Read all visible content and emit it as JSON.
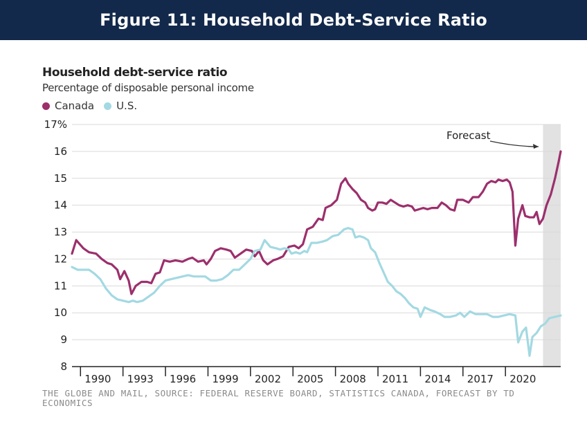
{
  "banner": {
    "title": "Figure 11: Household Debt-Service Ratio"
  },
  "colors": {
    "banner_bg": "#13294b",
    "canada": "#9c2f6c",
    "us": "#a3d9e2",
    "forecast_band": "#e2e2e2"
  },
  "chart_data": {
    "type": "line",
    "title": "Household debt-service ratio",
    "subtitle": "Percentage of disposable personal income",
    "ylim": [
      8,
      17
    ],
    "y_ticks": [
      "8",
      "9",
      "10",
      "11",
      "12",
      "13",
      "14",
      "15",
      "16",
      "17%"
    ],
    "xlim": [
      1988.5,
      2023.0
    ],
    "x_ticks": [
      "1990",
      "1993",
      "1996",
      "1999",
      "2002",
      "2005",
      "2008",
      "2011",
      "2014",
      "2017",
      "2020"
    ],
    "grid": true,
    "legend": [
      "Canada",
      "U.S."
    ],
    "forecast": {
      "label": "Forecast",
      "start": 2021.75,
      "end": 2023.0
    },
    "series": [
      {
        "name": "Canada",
        "color": "#9c2f6c",
        "points": [
          [
            1988.5,
            12.2
          ],
          [
            1988.8,
            12.7
          ],
          [
            1989.3,
            12.4
          ],
          [
            1989.7,
            12.25
          ],
          [
            1990.2,
            12.2
          ],
          [
            1990.6,
            12.0
          ],
          [
            1991.0,
            11.85
          ],
          [
            1991.3,
            11.8
          ],
          [
            1991.7,
            11.6
          ],
          [
            1991.9,
            11.25
          ],
          [
            1992.2,
            11.55
          ],
          [
            1992.5,
            11.2
          ],
          [
            1992.7,
            10.7
          ],
          [
            1993.0,
            11.0
          ],
          [
            1993.4,
            11.15
          ],
          [
            1993.8,
            11.15
          ],
          [
            1994.1,
            11.1
          ],
          [
            1994.4,
            11.45
          ],
          [
            1994.7,
            11.5
          ],
          [
            1995.0,
            11.95
          ],
          [
            1995.4,
            11.9
          ],
          [
            1995.8,
            11.95
          ],
          [
            1996.3,
            11.9
          ],
          [
            1996.7,
            12.0
          ],
          [
            1997.0,
            12.05
          ],
          [
            1997.4,
            11.9
          ],
          [
            1997.8,
            11.95
          ],
          [
            1998.0,
            11.8
          ],
          [
            1998.3,
            12.0
          ],
          [
            1998.6,
            12.3
          ],
          [
            1999.0,
            12.4
          ],
          [
            1999.4,
            12.35
          ],
          [
            1999.7,
            12.3
          ],
          [
            2000.0,
            12.05
          ],
          [
            2000.4,
            12.2
          ],
          [
            2000.8,
            12.35
          ],
          [
            2001.2,
            12.3
          ],
          [
            2001.4,
            12.1
          ],
          [
            2001.7,
            12.3
          ],
          [
            2002.0,
            11.95
          ],
          [
            2002.3,
            11.8
          ],
          [
            2002.7,
            11.95
          ],
          [
            2003.0,
            12.0
          ],
          [
            2003.4,
            12.1
          ],
          [
            2003.8,
            12.45
          ],
          [
            2004.2,
            12.5
          ],
          [
            2004.5,
            12.4
          ],
          [
            2004.8,
            12.55
          ],
          [
            2005.1,
            13.1
          ],
          [
            2005.5,
            13.2
          ],
          [
            2005.9,
            13.5
          ],
          [
            2006.2,
            13.45
          ],
          [
            2006.4,
            13.9
          ],
          [
            2006.8,
            14.0
          ],
          [
            2007.2,
            14.2
          ],
          [
            2007.5,
            14.8
          ],
          [
            2007.8,
            15.0
          ],
          [
            2008.0,
            14.8
          ],
          [
            2008.3,
            14.6
          ],
          [
            2008.6,
            14.45
          ],
          [
            2008.9,
            14.2
          ],
          [
            2009.2,
            14.1
          ],
          [
            2009.4,
            13.9
          ],
          [
            2009.7,
            13.8
          ],
          [
            2009.9,
            13.85
          ],
          [
            2010.1,
            14.1
          ],
          [
            2010.4,
            14.1
          ],
          [
            2010.7,
            14.05
          ],
          [
            2011.0,
            14.2
          ],
          [
            2011.3,
            14.1
          ],
          [
            2011.6,
            14.0
          ],
          [
            2011.9,
            13.95
          ],
          [
            2012.2,
            14.0
          ],
          [
            2012.5,
            13.95
          ],
          [
            2012.7,
            13.8
          ],
          [
            2013.0,
            13.85
          ],
          [
            2013.3,
            13.9
          ],
          [
            2013.6,
            13.85
          ],
          [
            2013.9,
            13.9
          ],
          [
            2014.3,
            13.9
          ],
          [
            2014.6,
            14.1
          ],
          [
            2014.9,
            14.0
          ],
          [
            2015.2,
            13.85
          ],
          [
            2015.5,
            13.8
          ],
          [
            2015.7,
            14.2
          ],
          [
            2016.1,
            14.2
          ],
          [
            2016.5,
            14.1
          ],
          [
            2016.8,
            14.3
          ],
          [
            2017.2,
            14.3
          ],
          [
            2017.5,
            14.5
          ],
          [
            2017.8,
            14.8
          ],
          [
            2018.1,
            14.9
          ],
          [
            2018.4,
            14.85
          ],
          [
            2018.6,
            14.95
          ],
          [
            2018.9,
            14.9
          ],
          [
            2019.2,
            14.95
          ],
          [
            2019.4,
            14.85
          ],
          [
            2019.6,
            14.5
          ],
          [
            2019.8,
            12.5
          ],
          [
            2020.0,
            13.5
          ],
          [
            2020.3,
            14.0
          ],
          [
            2020.5,
            13.6
          ],
          [
            2020.8,
            13.55
          ],
          [
            2021.1,
            13.55
          ],
          [
            2021.3,
            13.75
          ],
          [
            2021.5,
            13.3
          ],
          [
            2021.75,
            13.5
          ],
          [
            2022.0,
            14.0
          ],
          [
            2022.3,
            14.4
          ],
          [
            2022.6,
            15.0
          ],
          [
            2022.85,
            15.6
          ],
          [
            2023.0,
            16.0
          ]
        ]
      },
      {
        "name": "U.S.",
        "color": "#a3d9e2",
        "points": [
          [
            1988.5,
            11.7
          ],
          [
            1988.9,
            11.6
          ],
          [
            1989.3,
            11.6
          ],
          [
            1989.7,
            11.6
          ],
          [
            1990.1,
            11.45
          ],
          [
            1990.5,
            11.25
          ],
          [
            1990.9,
            10.9
          ],
          [
            1991.3,
            10.65
          ],
          [
            1991.7,
            10.5
          ],
          [
            1992.1,
            10.45
          ],
          [
            1992.5,
            10.4
          ],
          [
            1992.8,
            10.45
          ],
          [
            1993.1,
            10.4
          ],
          [
            1993.5,
            10.45
          ],
          [
            1993.9,
            10.6
          ],
          [
            1994.3,
            10.75
          ],
          [
            1994.7,
            11.0
          ],
          [
            1995.1,
            11.2
          ],
          [
            1995.5,
            11.25
          ],
          [
            1995.9,
            11.3
          ],
          [
            1996.3,
            11.35
          ],
          [
            1996.7,
            11.4
          ],
          [
            1997.1,
            11.35
          ],
          [
            1997.5,
            11.35
          ],
          [
            1997.9,
            11.35
          ],
          [
            1998.3,
            11.2
          ],
          [
            1998.7,
            11.2
          ],
          [
            1999.1,
            11.25
          ],
          [
            1999.5,
            11.4
          ],
          [
            1999.9,
            11.6
          ],
          [
            2000.3,
            11.6
          ],
          [
            2000.7,
            11.8
          ],
          [
            2001.1,
            12.0
          ],
          [
            2001.4,
            12.3
          ],
          [
            2001.8,
            12.35
          ],
          [
            2002.1,
            12.7
          ],
          [
            2002.5,
            12.45
          ],
          [
            2002.9,
            12.4
          ],
          [
            2003.2,
            12.35
          ],
          [
            2003.5,
            12.4
          ],
          [
            2003.8,
            12.35
          ],
          [
            2004.0,
            12.2
          ],
          [
            2004.3,
            12.25
          ],
          [
            2004.6,
            12.2
          ],
          [
            2004.9,
            12.3
          ],
          [
            2005.1,
            12.25
          ],
          [
            2005.4,
            12.6
          ],
          [
            2005.8,
            12.6
          ],
          [
            2006.2,
            12.65
          ],
          [
            2006.5,
            12.7
          ],
          [
            2006.9,
            12.85
          ],
          [
            2007.3,
            12.9
          ],
          [
            2007.7,
            13.1
          ],
          [
            2008.0,
            13.15
          ],
          [
            2008.3,
            13.1
          ],
          [
            2008.5,
            12.8
          ],
          [
            2008.8,
            12.85
          ],
          [
            2009.1,
            12.8
          ],
          [
            2009.4,
            12.7
          ],
          [
            2009.6,
            12.4
          ],
          [
            2009.9,
            12.25
          ],
          [
            2010.2,
            11.85
          ],
          [
            2010.5,
            11.5
          ],
          [
            2010.8,
            11.15
          ],
          [
            2011.1,
            11.0
          ],
          [
            2011.4,
            10.8
          ],
          [
            2011.7,
            10.7
          ],
          [
            2012.0,
            10.55
          ],
          [
            2012.3,
            10.35
          ],
          [
            2012.6,
            10.2
          ],
          [
            2012.9,
            10.15
          ],
          [
            2013.1,
            9.85
          ],
          [
            2013.4,
            10.2
          ],
          [
            2013.8,
            10.1
          ],
          [
            2014.1,
            10.05
          ],
          [
            2014.5,
            9.95
          ],
          [
            2014.8,
            9.85
          ],
          [
            2015.2,
            9.85
          ],
          [
            2015.6,
            9.9
          ],
          [
            2015.9,
            10.0
          ],
          [
            2016.2,
            9.85
          ],
          [
            2016.6,
            10.05
          ],
          [
            2017.0,
            9.95
          ],
          [
            2017.4,
            9.95
          ],
          [
            2017.8,
            9.95
          ],
          [
            2018.2,
            9.85
          ],
          [
            2018.6,
            9.85
          ],
          [
            2019.0,
            9.9
          ],
          [
            2019.4,
            9.95
          ],
          [
            2019.8,
            9.9
          ],
          [
            2020.0,
            8.9
          ],
          [
            2020.3,
            9.3
          ],
          [
            2020.55,
            9.45
          ],
          [
            2020.8,
            8.4
          ],
          [
            2021.0,
            9.1
          ],
          [
            2021.3,
            9.25
          ],
          [
            2021.6,
            9.5
          ],
          [
            2021.9,
            9.6
          ],
          [
            2022.2,
            9.8
          ],
          [
            2022.6,
            9.85
          ],
          [
            2023.0,
            9.9
          ]
        ]
      }
    ]
  },
  "source": {
    "note": "THE GLOBE AND MAIL, SOURCE: FEDERAL RESERVE BOARD, STATISTICS CANADA, FORECAST BY TD ECONOMICS"
  }
}
